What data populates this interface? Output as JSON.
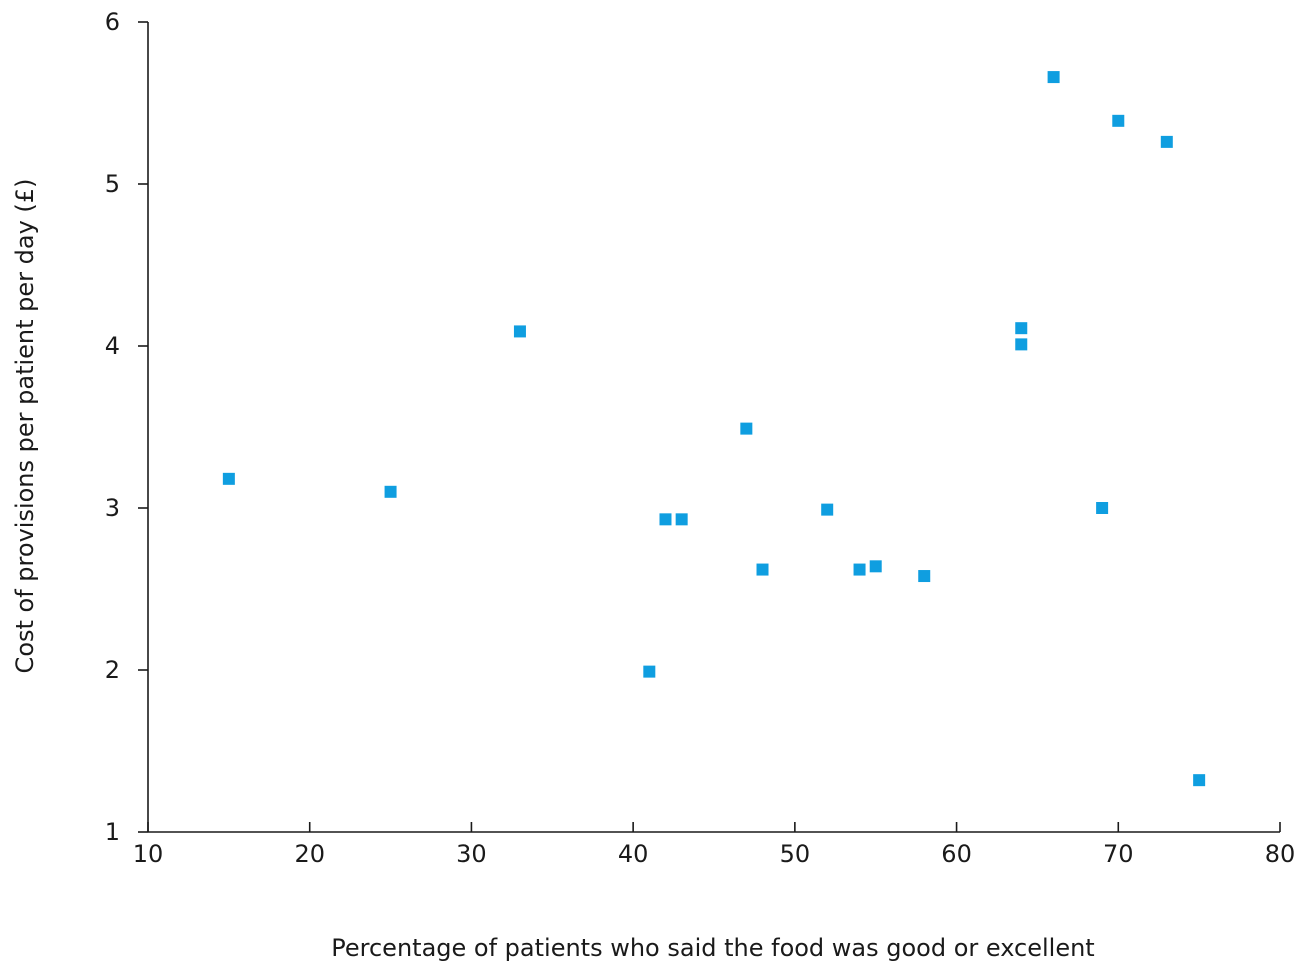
{
  "chart_data": {
    "type": "scatter",
    "title": "",
    "xlabel": "Percentage of patients who said the food was good or excellent",
    "ylabel": "Cost of provisions per patient per day (£)",
    "xlim": [
      10,
      80
    ],
    "ylim": [
      1,
      6
    ],
    "xticks": [
      10,
      20,
      30,
      40,
      50,
      60,
      70,
      80
    ],
    "yticks": [
      1,
      2,
      3,
      4,
      5,
      6
    ],
    "grid": false,
    "legend": "none",
    "marker": "square",
    "marker_color": "#0f9ee0",
    "points": [
      {
        "x": 15,
        "y": 3.18
      },
      {
        "x": 25,
        "y": 3.1
      },
      {
        "x": 33,
        "y": 4.09
      },
      {
        "x": 41,
        "y": 1.99
      },
      {
        "x": 42,
        "y": 2.93
      },
      {
        "x": 43,
        "y": 2.93
      },
      {
        "x": 47,
        "y": 3.49
      },
      {
        "x": 48,
        "y": 2.62
      },
      {
        "x": 52,
        "y": 2.99
      },
      {
        "x": 54,
        "y": 2.62
      },
      {
        "x": 55,
        "y": 2.64
      },
      {
        "x": 58,
        "y": 2.58
      },
      {
        "x": 64,
        "y": 4.11
      },
      {
        "x": 64,
        "y": 4.01
      },
      {
        "x": 66,
        "y": 5.66
      },
      {
        "x": 69,
        "y": 3.0
      },
      {
        "x": 70,
        "y": 5.39
      },
      {
        "x": 73,
        "y": 5.26
      },
      {
        "x": 75,
        "y": 1.32
      }
    ]
  }
}
